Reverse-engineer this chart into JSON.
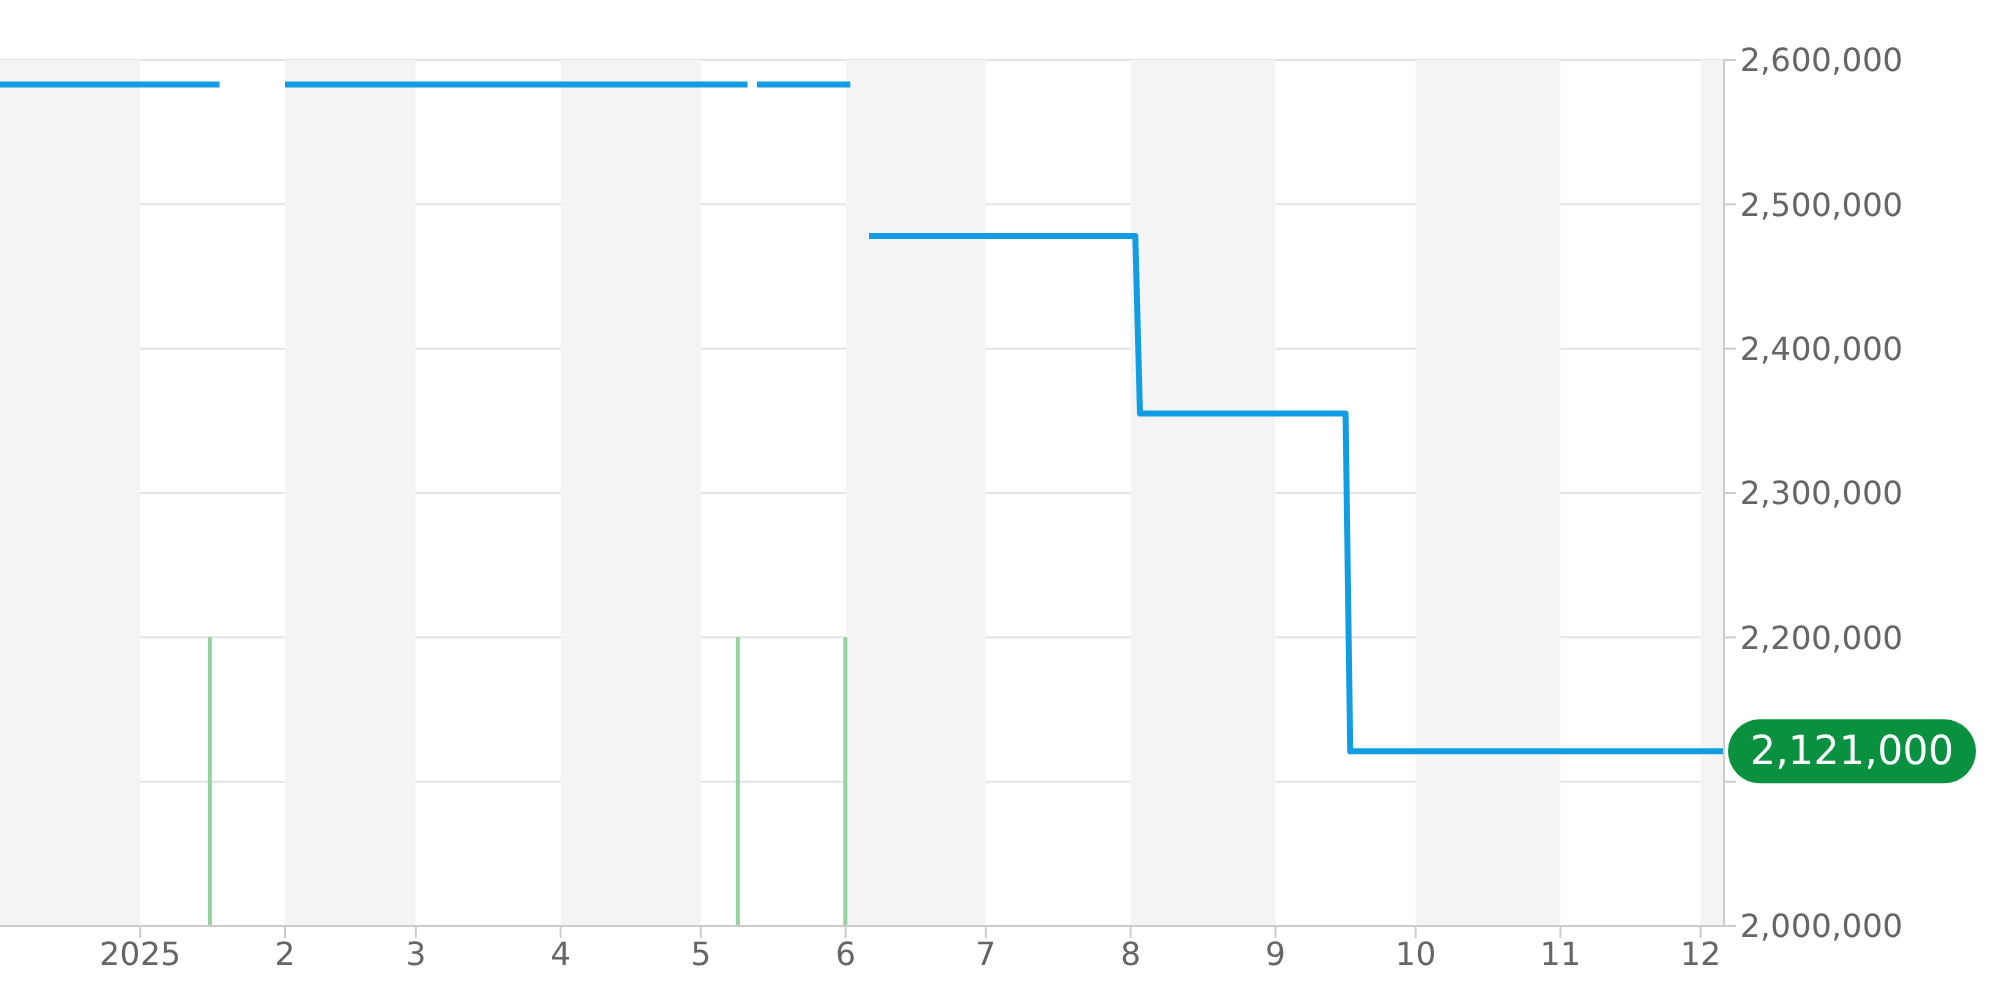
{
  "chart_data": {
    "type": "line",
    "series": [
      {
        "color": "#129de2",
        "x": [
          "2024-12-02",
          "2025-01-18",
          "2025-01-25",
          "2025-02-01",
          "2025-05-11",
          "2025-05-12",
          "2025-05-13",
          "2025-06-02",
          "2025-06-04",
          "2025-06-06",
          "2025-08-02",
          "2025-08-03",
          "2025-09-16",
          "2025-09-17",
          "2025-12-06"
        ],
        "values": [
          2583000,
          2583000,
          null,
          2583000,
          2583000,
          null,
          2583000,
          2583000,
          null,
          2478000,
          2478000,
          2355000,
          2355000,
          2121000,
          2121000
        ],
        "value_labels": [
          null,
          null,
          null,
          null,
          null,
          null,
          null,
          null,
          null,
          null,
          null,
          null,
          null,
          null,
          "2,121,000"
        ]
      },
      {
        "type": "bar",
        "color": "#93d3a2",
        "x": [
          "2025-01-16",
          "2025-05-09",
          "2025-06-01"
        ],
        "values": [
          2200000,
          2200000,
          2200000
        ]
      }
    ],
    "xlim": [
      "2024-12-02",
      "2025-12-06"
    ],
    "xticks": [
      {
        "value": "2025-01-01",
        "label": "2025"
      },
      {
        "value": "2025-02-01",
        "label": "2"
      },
      {
        "value": "2025-03-01",
        "label": "3"
      },
      {
        "value": "2025-04-01",
        "label": "4"
      },
      {
        "value": "2025-05-01",
        "label": "5"
      },
      {
        "value": "2025-06-01",
        "label": "6"
      },
      {
        "value": "2025-07-01",
        "label": "7"
      },
      {
        "value": "2025-08-01",
        "label": "8"
      },
      {
        "value": "2025-09-01",
        "label": "9"
      },
      {
        "value": "2025-10-01",
        "label": "10"
      },
      {
        "value": "2025-11-01",
        "label": "11"
      },
      {
        "value": "2025-12-01",
        "label": "12"
      }
    ],
    "ylim": [
      2000000,
      2600000
    ],
    "yticks": [
      {
        "value": 2000000,
        "label": "2,000,000"
      },
      {
        "value": 2100000,
        "label": null
      },
      {
        "value": 2200000,
        "label": "2,200,000"
      },
      {
        "value": 2300000,
        "label": "2,300,000"
      },
      {
        "value": 2400000,
        "label": "2,400,000"
      },
      {
        "value": 2500000,
        "label": "2,500,000"
      },
      {
        "value": 2600000,
        "label": "2,600,000"
      }
    ],
    "grid": "y",
    "bands": [
      {
        "axis": "x",
        "from": "2024-12-02",
        "to": "2025-01-01",
        "color": "#f4f4f4"
      },
      {
        "axis": "x",
        "from": "2025-02-01",
        "to": "2025-03-01",
        "color": "#f4f4f4"
      },
      {
        "axis": "x",
        "from": "2025-04-01",
        "to": "2025-05-01",
        "color": "#f4f4f4"
      },
      {
        "axis": "x",
        "from": "2025-06-01",
        "to": "2025-07-01",
        "color": "#f4f4f4"
      },
      {
        "axis": "x",
        "from": "2025-08-01",
        "to": "2025-09-01",
        "color": "#f4f4f4"
      },
      {
        "axis": "x",
        "from": "2025-10-01",
        "to": "2025-11-01",
        "color": "#f4f4f4"
      },
      {
        "axis": "x",
        "from": "2025-12-01",
        "to": "2025-12-06",
        "color": "#f4f4f4"
      }
    ]
  }
}
